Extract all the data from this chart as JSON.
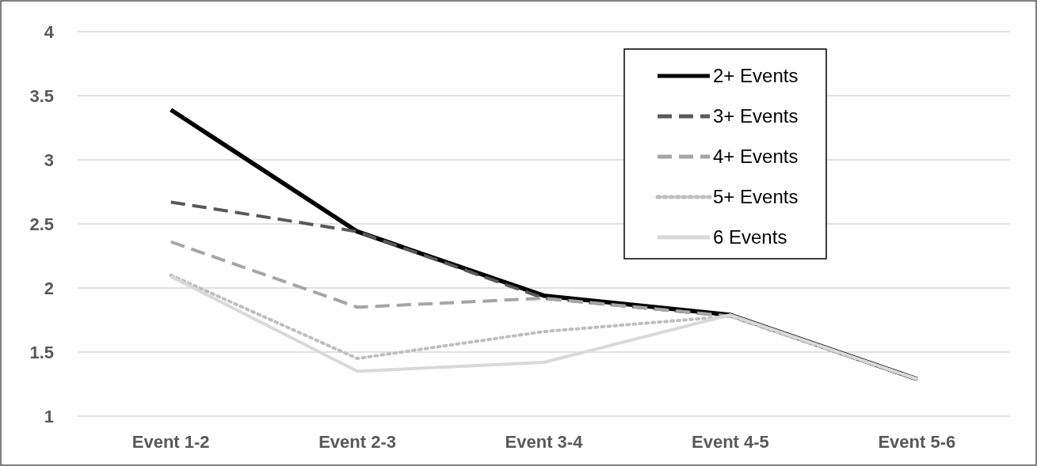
{
  "chart_data": {
    "type": "line",
    "categories": [
      "Event 1-2",
      "Event 2-3",
      "Event 3-4",
      "Event 4-5",
      "Event 5-6"
    ],
    "series": [
      {
        "name": "2+ Events",
        "color": "#000000",
        "line_style": "solid",
        "values": [
          3.39,
          2.44,
          1.94,
          1.79,
          1.29
        ]
      },
      {
        "name": "3+ Events",
        "color": "#595959",
        "line_style": "dashed",
        "values": [
          2.67,
          2.44,
          1.92,
          1.78,
          1.29
        ]
      },
      {
        "name": "4+ Events",
        "color": "#a6a6a6",
        "line_style": "dashed",
        "values": [
          2.36,
          1.85,
          1.92,
          1.78,
          1.29
        ]
      },
      {
        "name": "5+ Events",
        "color": "#bfbfbf",
        "line_style": "dotted",
        "values": [
          2.1,
          1.45,
          1.66,
          1.78,
          1.29
        ]
      },
      {
        "name": "6 Events",
        "color": "#d9d9d9",
        "line_style": "solid",
        "values": [
          2.09,
          1.35,
          1.42,
          1.79,
          1.29
        ]
      }
    ],
    "ylim": [
      1,
      4
    ],
    "yticks": [
      1,
      1.5,
      2,
      2.5,
      3,
      3.5,
      4
    ],
    "grid": "y",
    "legend": "top right",
    "marker": "none"
  }
}
